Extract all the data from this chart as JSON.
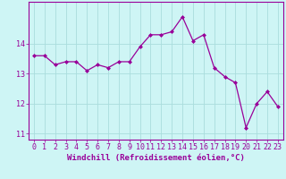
{
  "x": [
    0,
    1,
    2,
    3,
    4,
    5,
    6,
    7,
    8,
    9,
    10,
    11,
    12,
    13,
    14,
    15,
    16,
    17,
    18,
    19,
    20,
    21,
    22,
    23
  ],
  "y": [
    13.6,
    13.6,
    13.3,
    13.4,
    13.4,
    13.1,
    13.3,
    13.2,
    13.4,
    13.4,
    13.9,
    14.3,
    14.3,
    14.4,
    14.9,
    14.1,
    14.3,
    13.2,
    12.9,
    12.7,
    11.2,
    12.0,
    12.4,
    11.9
  ],
  "line_color": "#990099",
  "marker": "D",
  "markersize": 2.0,
  "linewidth": 0.9,
  "background_color": "#cef5f5",
  "grid_color": "#aadddd",
  "xlabel": "Windchill (Refroidissement éolien,°C)",
  "xlabel_fontsize": 6.5,
  "ylim": [
    10.8,
    15.4
  ],
  "xlim": [
    -0.5,
    23.5
  ],
  "yticks": [
    11,
    12,
    13,
    14
  ],
  "xticks": [
    0,
    1,
    2,
    3,
    4,
    5,
    6,
    7,
    8,
    9,
    10,
    11,
    12,
    13,
    14,
    15,
    16,
    17,
    18,
    19,
    20,
    21,
    22,
    23
  ],
  "tick_fontsize": 6.0
}
